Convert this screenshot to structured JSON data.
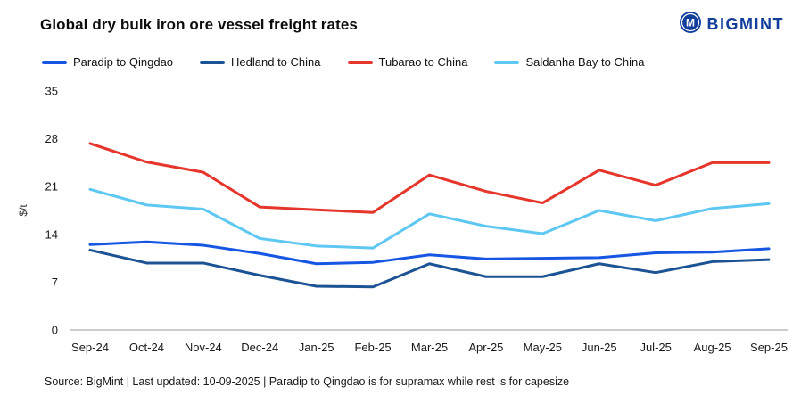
{
  "header": {
    "title": "Global dry bulk iron ore vessel freight rates",
    "brand": "BIGMINT"
  },
  "footer": {
    "source": "Source: BigMint | Last updated: 10-09-2025 | Paradip to Qingdao is for supramax while rest is for capesize"
  },
  "chart_data": {
    "type": "line",
    "title": "Global dry bulk iron ore vessel freight rates",
    "categories": [
      "Sep-24",
      "Oct-24",
      "Nov-24",
      "Dec-24",
      "Jan-25",
      "Feb-25",
      "Mar-25",
      "Apr-25",
      "May-25",
      "Jun-25",
      "Jul-25",
      "Aug-25",
      "Sep-25"
    ],
    "series": [
      {
        "name": "Paradip to Qingdao",
        "color": "#1656e3",
        "values": [
          12.5,
          12.9,
          12.4,
          11.2,
          9.7,
          9.9,
          11.0,
          10.4,
          10.5,
          10.6,
          11.3,
          11.4,
          11.9
        ]
      },
      {
        "name": "Hedland to China",
        "color": "#1c5394",
        "values": [
          11.7,
          9.8,
          9.8,
          8.0,
          6.4,
          6.3,
          9.7,
          7.8,
          7.8,
          9.7,
          8.4,
          10.0,
          10.3
        ]
      },
      {
        "name": "Tubarao to China",
        "color": "#e6352b",
        "values": [
          27.3,
          24.6,
          23.1,
          18.0,
          17.6,
          17.2,
          22.7,
          20.3,
          18.6,
          23.4,
          21.2,
          24.5,
          24.5
        ]
      },
      {
        "name": "Saldanha Bay to China",
        "color": "#5ec8f2",
        "values": [
          20.6,
          18.3,
          17.7,
          13.4,
          12.3,
          12.0,
          17.0,
          15.2,
          14.1,
          17.5,
          16.0,
          17.8,
          18.5
        ]
      }
    ],
    "xlabel": "",
    "ylabel": "$/t",
    "ylim": [
      0,
      35
    ],
    "yticks": [
      0,
      7,
      14,
      21,
      28,
      35
    ],
    "grid": false,
    "legend_position": "top"
  }
}
